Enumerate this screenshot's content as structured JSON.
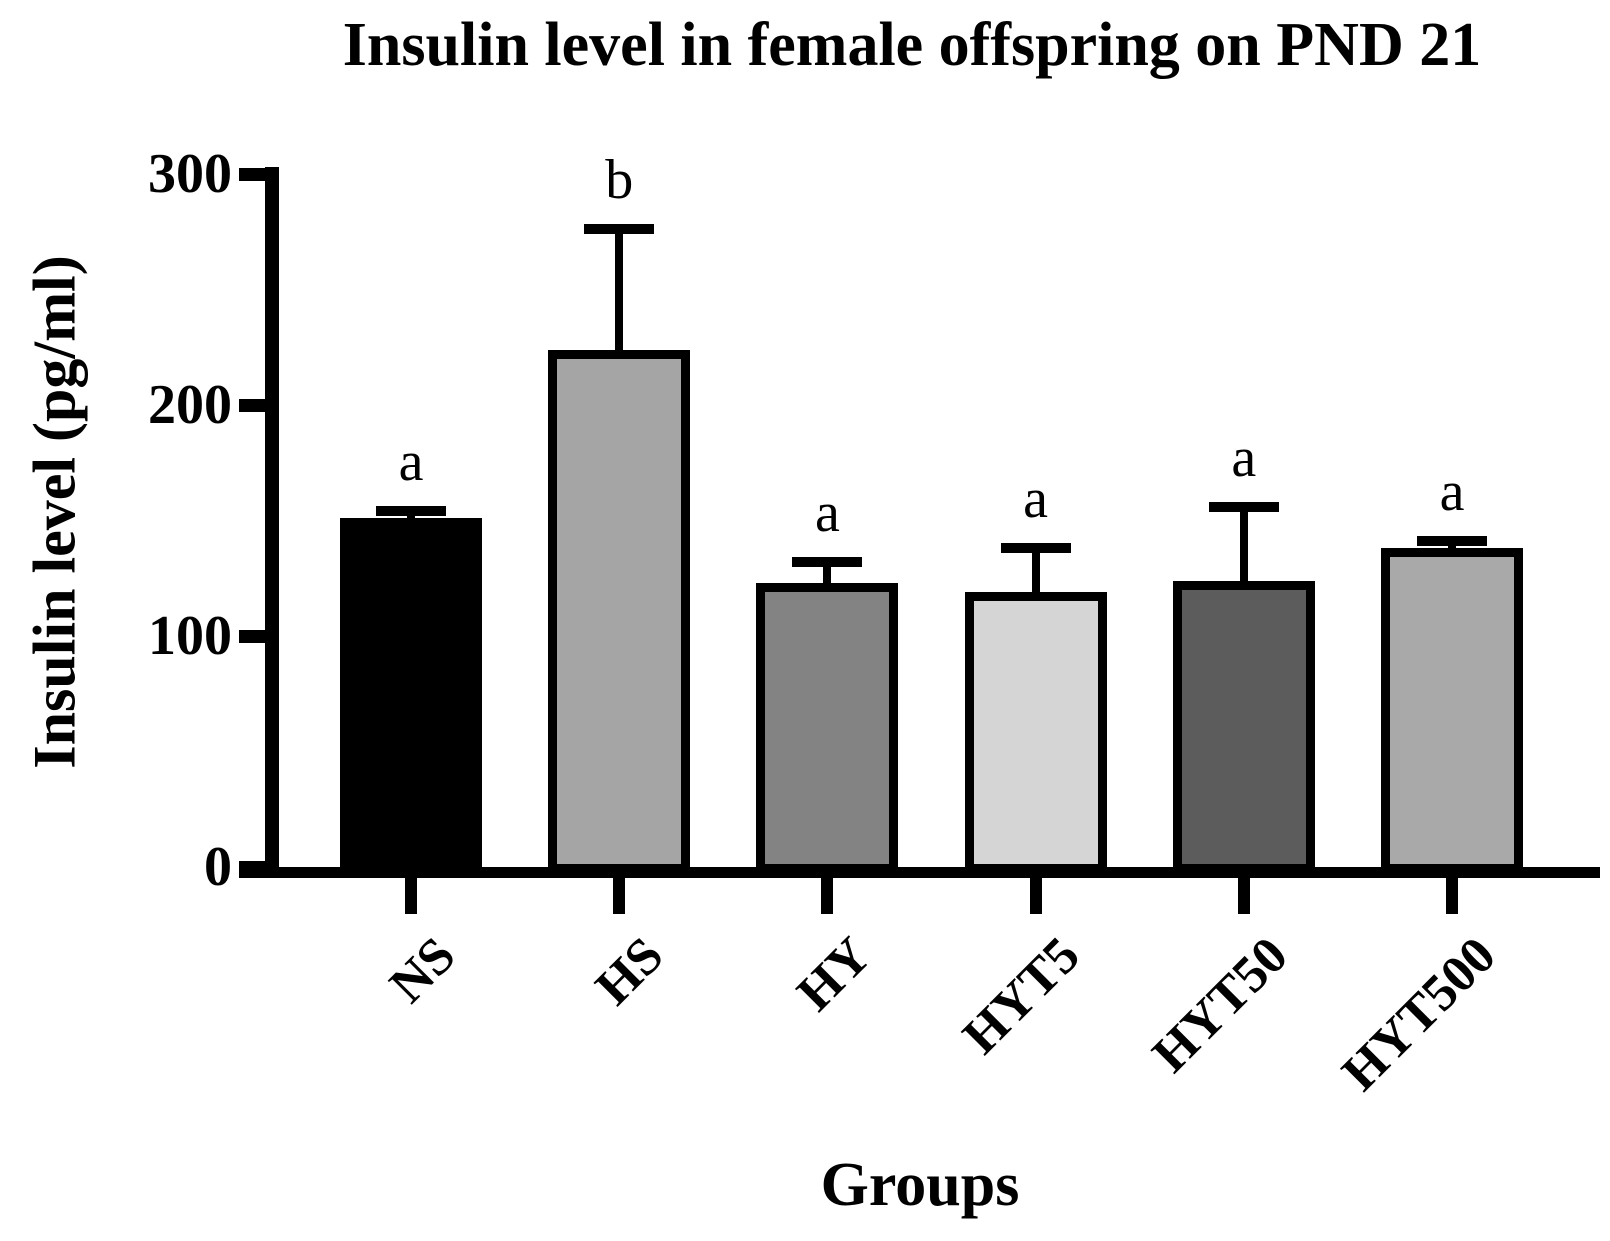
{
  "figure": {
    "background": "#ffffff",
    "text_color": "#000000"
  },
  "chart_data": {
    "type": "bar",
    "title": "Insulin level in female offspring on PND 21",
    "xlabel": "Groups",
    "ylabel": "Insulin level (pg/ml)",
    "categories": [
      "NS",
      "HS",
      "HY",
      "HYT5",
      "HYT50",
      "HYT500"
    ],
    "values": [
      151,
      224,
      123,
      119,
      124,
      138
    ],
    "errors_plus": [
      3,
      52,
      9,
      19,
      32,
      3
    ],
    "sig_letters": [
      "a",
      "b",
      "a",
      "a",
      "a",
      "a"
    ],
    "bar_colors": [
      "#000000",
      "#a5a5a5",
      "#838383",
      "#d5d5d5",
      "#5c5c5c",
      "#a9a9a9"
    ],
    "bar_border_color": "#000000",
    "axis_color": "#000000",
    "ylim": [
      0,
      300
    ],
    "yticks": [
      0,
      100,
      200,
      300
    ],
    "grid": false,
    "legend": "none",
    "error_bar_style": "upper-only-capped"
  }
}
